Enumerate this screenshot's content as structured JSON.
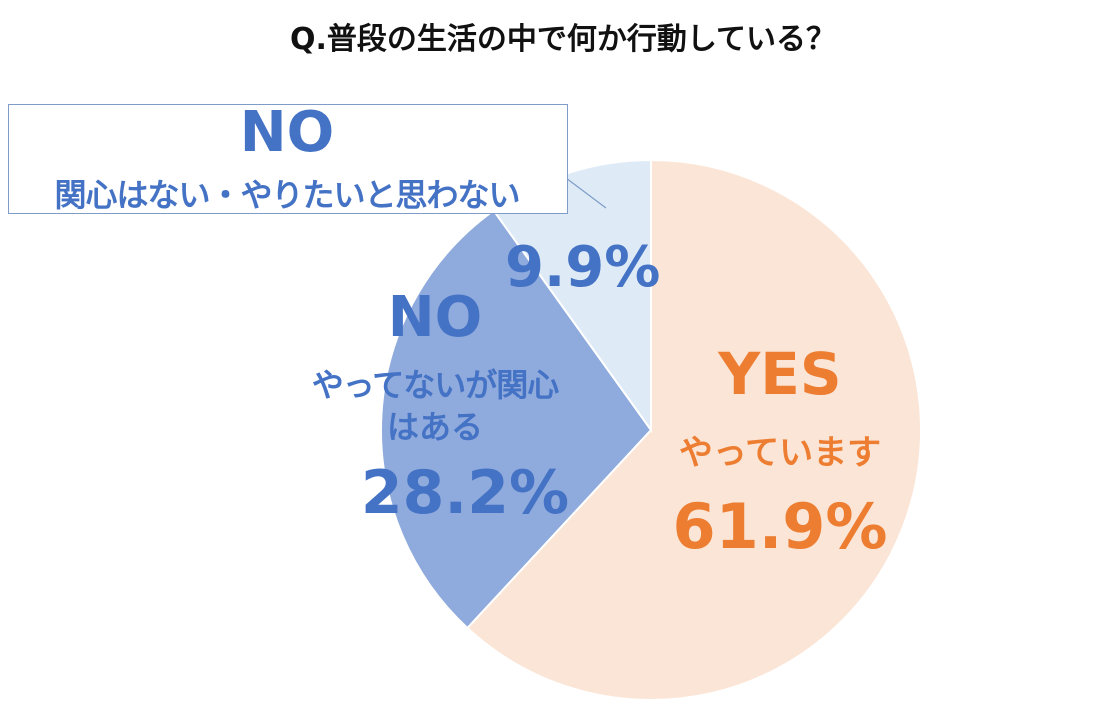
{
  "chart_data": {
    "type": "pie",
    "title": "Q.普段の生活の中で何か行動している？",
    "start_angle": "top",
    "direction": "clockwise",
    "slices": [
      {
        "category": "YES",
        "label": "やっています",
        "value": 61.9,
        "value_label": "61.9%",
        "color": "#FBE5D6",
        "text_color": "#ED7D31"
      },
      {
        "category": "NO",
        "label": "やってないが関心はある",
        "label_lines": [
          "やってないが関心",
          "はある"
        ],
        "value": 28.2,
        "value_label": "28.2%",
        "color": "#8FAADC",
        "text_color": "#4472C4"
      },
      {
        "category": "NO",
        "label": "関心はない・やりたいと思わない",
        "value": 9.9,
        "value_label": "9.9%",
        "color": "#DEEBF7",
        "text_color": "#4472C4"
      }
    ]
  }
}
